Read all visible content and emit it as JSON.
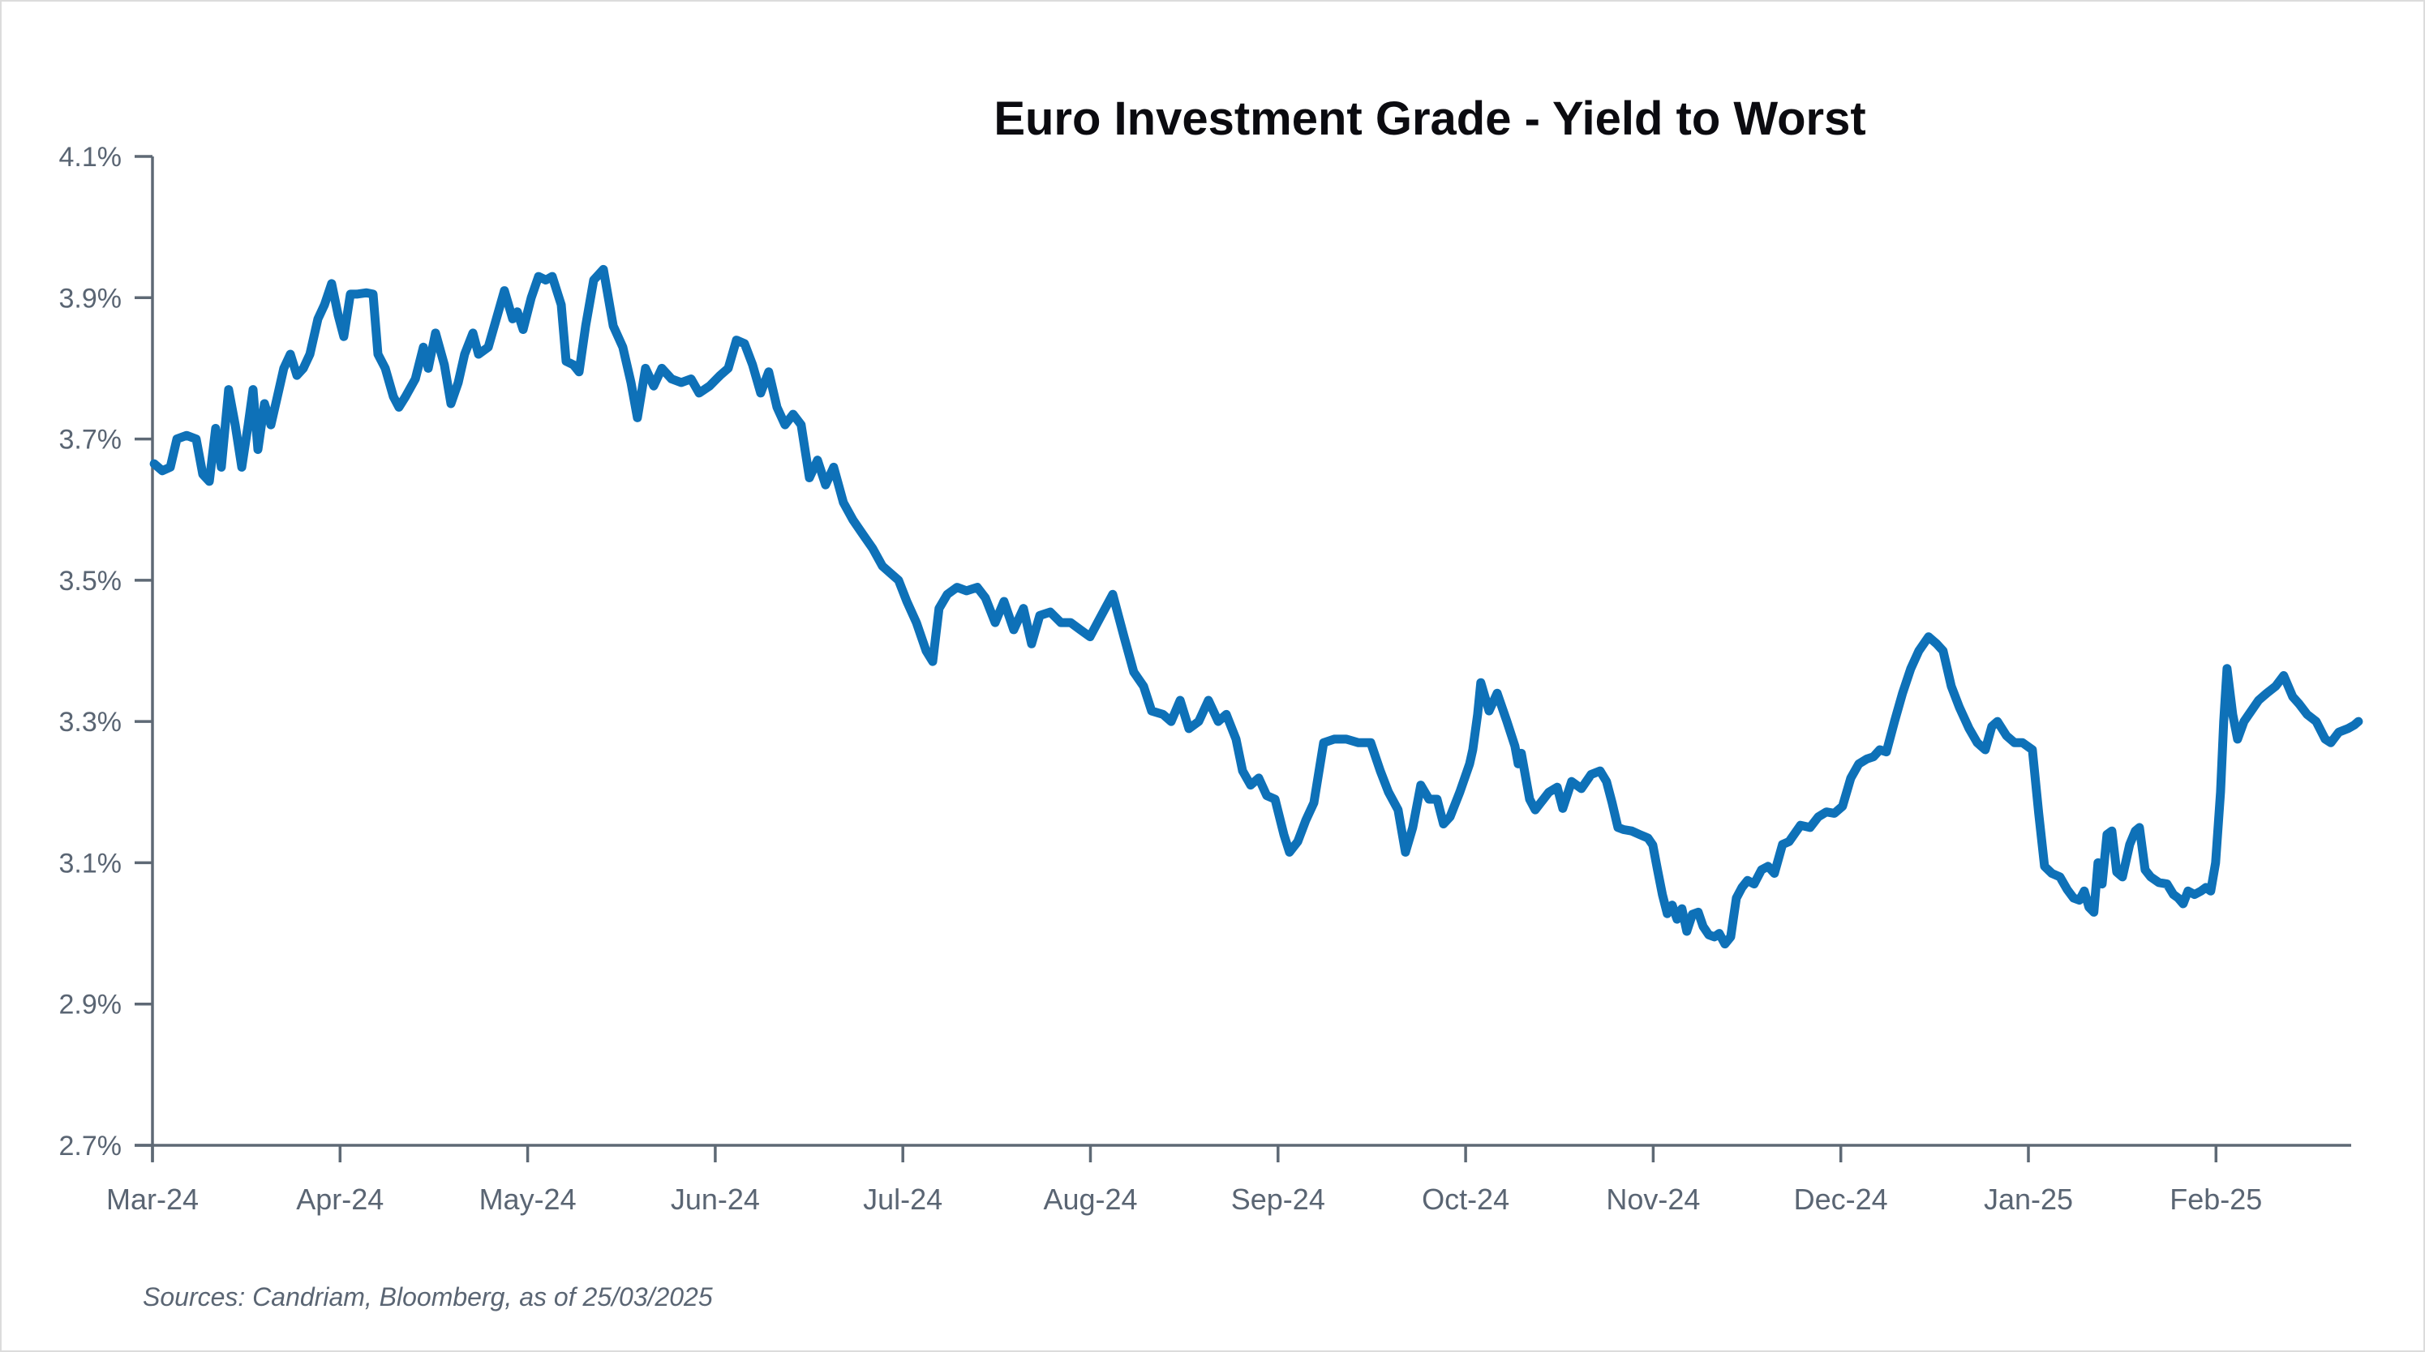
{
  "chart_data": {
    "type": "line",
    "title": "Euro Investment Grade - Yield to Worst",
    "source_note": "Sources: Candriam, Bloomberg, as of 25/03/2025",
    "legend": "none",
    "grid": "off",
    "colors": {
      "line": "#0E71B8",
      "axis": "#5E6975",
      "tick_label": "#5A6573",
      "title": "#0B0B10"
    },
    "y_axis": {
      "min": 2.7,
      "max": 4.1,
      "tick_step": 0.2,
      "unit": "percent",
      "tick_labels": [
        "4.1%",
        "3.9%",
        "3.7%",
        "3.5%",
        "3.3%",
        "3.1%",
        "2.9%",
        "2.7%"
      ]
    },
    "x_axis": {
      "unit": "month",
      "tick_labels": [
        "Mar-24",
        "Apr-24",
        "May-24",
        "Jun-24",
        "Jul-24",
        "Aug-24",
        "Sep-24",
        "Oct-24",
        "Nov-24",
        "Dec-24",
        "Jan-25",
        "Feb-25"
      ]
    },
    "series": [
      {
        "name": "Euro Investment Grade yield to worst (%)",
        "x_unit": "months_since_Mar-24",
        "points": [
          [
            0.009,
            3.665
          ],
          [
            0.052,
            3.655
          ],
          [
            0.095,
            3.66
          ],
          [
            0.13,
            3.7
          ],
          [
            0.182,
            3.705
          ],
          [
            0.233,
            3.7
          ],
          [
            0.268,
            3.65
          ],
          [
            0.303,
            3.64
          ],
          [
            0.337,
            3.715
          ],
          [
            0.367,
            3.66
          ],
          [
            0.406,
            3.77
          ],
          [
            0.441,
            3.72
          ],
          [
            0.476,
            3.66
          ],
          [
            0.51,
            3.72
          ],
          [
            0.536,
            3.77
          ],
          [
            0.562,
            3.685
          ],
          [
            0.597,
            3.75
          ],
          [
            0.631,
            3.72
          ],
          [
            0.666,
            3.76
          ],
          [
            0.7,
            3.8
          ],
          [
            0.735,
            3.82
          ],
          [
            0.77,
            3.79
          ],
          [
            0.804,
            3.8
          ],
          [
            0.839,
            3.82
          ],
          [
            0.882,
            3.87
          ],
          [
            0.917,
            3.89
          ],
          [
            0.955,
            3.92
          ],
          [
            0.99,
            3.875
          ],
          [
            1.02,
            3.845
          ],
          [
            1.055,
            3.905
          ],
          [
            1.089,
            3.905
          ],
          [
            1.141,
            3.907
          ],
          [
            1.176,
            3.905
          ],
          [
            1.202,
            3.82
          ],
          [
            1.241,
            3.8
          ],
          [
            1.284,
            3.76
          ],
          [
            1.314,
            3.745
          ],
          [
            1.349,
            3.76
          ],
          [
            1.401,
            3.785
          ],
          [
            1.444,
            3.83
          ],
          [
            1.47,
            3.8
          ],
          [
            1.509,
            3.85
          ],
          [
            1.556,
            3.805
          ],
          [
            1.591,
            3.75
          ],
          [
            1.63,
            3.78
          ],
          [
            1.664,
            3.82
          ],
          [
            1.708,
            3.85
          ],
          [
            1.738,
            3.82
          ],
          [
            1.79,
            3.83
          ],
          [
            1.833,
            3.87
          ],
          [
            1.876,
            3.91
          ],
          [
            1.92,
            3.87
          ],
          [
            1.945,
            3.88
          ],
          [
            1.976,
            3.855
          ],
          [
            2.019,
            3.9
          ],
          [
            2.058,
            3.93
          ],
          [
            2.097,
            3.925
          ],
          [
            2.131,
            3.93
          ],
          [
            2.179,
            3.89
          ],
          [
            2.205,
            3.81
          ],
          [
            2.244,
            3.805
          ],
          [
            2.274,
            3.795
          ],
          [
            2.309,
            3.86
          ],
          [
            2.352,
            3.925
          ],
          [
            2.404,
            3.94
          ],
          [
            2.456,
            3.86
          ],
          [
            2.507,
            3.83
          ],
          [
            2.551,
            3.78
          ],
          [
            2.585,
            3.73
          ],
          [
            2.628,
            3.8
          ],
          [
            2.672,
            3.775
          ],
          [
            2.715,
            3.8
          ],
          [
            2.767,
            3.785
          ],
          [
            2.819,
            3.78
          ],
          [
            2.871,
            3.785
          ],
          [
            2.914,
            3.765
          ],
          [
            2.97,
            3.775
          ],
          [
            3.026,
            3.79
          ],
          [
            3.069,
            3.8
          ],
          [
            3.113,
            3.84
          ],
          [
            3.156,
            3.835
          ],
          [
            3.199,
            3.805
          ],
          [
            3.242,
            3.765
          ],
          [
            3.285,
            3.795
          ],
          [
            3.329,
            3.745
          ],
          [
            3.372,
            3.72
          ],
          [
            3.415,
            3.735
          ],
          [
            3.458,
            3.72
          ],
          [
            3.502,
            3.645
          ],
          [
            3.545,
            3.67
          ],
          [
            3.588,
            3.635
          ],
          [
            3.631,
            3.66
          ],
          [
            3.683,
            3.61
          ],
          [
            3.735,
            3.585
          ],
          [
            3.787,
            3.565
          ],
          [
            3.839,
            3.545
          ],
          [
            3.891,
            3.52
          ],
          [
            3.934,
            3.51
          ],
          [
            3.977,
            3.5
          ],
          [
            4.021,
            3.47
          ],
          [
            4.072,
            3.44
          ],
          [
            4.124,
            3.4
          ],
          [
            4.159,
            3.385
          ],
          [
            4.193,
            3.46
          ],
          [
            4.237,
            3.48
          ],
          [
            4.289,
            3.49
          ],
          [
            4.34,
            3.485
          ],
          [
            4.397,
            3.49
          ],
          [
            4.44,
            3.475
          ],
          [
            4.492,
            3.44
          ],
          [
            4.539,
            3.47
          ],
          [
            4.591,
            3.43
          ],
          [
            4.643,
            3.46
          ],
          [
            4.686,
            3.41
          ],
          [
            4.73,
            3.45
          ],
          [
            4.786,
            3.455
          ],
          [
            4.842,
            3.44
          ],
          [
            4.894,
            3.44
          ],
          [
            4.946,
            3.43
          ],
          [
            4.998,
            3.42
          ],
          [
            5.058,
            3.45
          ],
          [
            5.119,
            3.48
          ],
          [
            5.179,
            3.42
          ],
          [
            5.231,
            3.37
          ],
          [
            5.283,
            3.35
          ],
          [
            5.326,
            3.315
          ],
          [
            5.387,
            3.31
          ],
          [
            5.43,
            3.3
          ],
          [
            5.478,
            3.33
          ],
          [
            5.525,
            3.29
          ],
          [
            5.577,
            3.3
          ],
          [
            5.629,
            3.33
          ],
          [
            5.681,
            3.3
          ],
          [
            5.724,
            3.31
          ],
          [
            5.776,
            3.275
          ],
          [
            5.811,
            3.23
          ],
          [
            5.854,
            3.21
          ],
          [
            5.897,
            3.22
          ],
          [
            5.94,
            3.195
          ],
          [
            5.984,
            3.19
          ],
          [
            6.031,
            3.14
          ],
          [
            6.061,
            3.115
          ],
          [
            6.105,
            3.13
          ],
          [
            6.148,
            3.16
          ],
          [
            6.191,
            3.185
          ],
          [
            6.243,
            3.27
          ],
          [
            6.299,
            3.275
          ],
          [
            6.364,
            3.275
          ],
          [
            6.429,
            3.27
          ],
          [
            6.494,
            3.27
          ],
          [
            6.545,
            3.23
          ],
          [
            6.589,
            3.2
          ],
          [
            6.64,
            3.175
          ],
          [
            6.679,
            3.115
          ],
          [
            6.718,
            3.15
          ],
          [
            6.761,
            3.21
          ],
          [
            6.805,
            3.19
          ],
          [
            6.848,
            3.19
          ],
          [
            6.882,
            3.155
          ],
          [
            6.917,
            3.165
          ],
          [
            6.969,
            3.2
          ],
          [
            7.021,
            3.24
          ],
          [
            7.038,
            3.26
          ],
          [
            7.064,
            3.31
          ],
          [
            7.081,
            3.355
          ],
          [
            7.125,
            3.315
          ],
          [
            7.168,
            3.34
          ],
          [
            7.22,
            3.3
          ],
          [
            7.263,
            3.265
          ],
          [
            7.28,
            3.24
          ],
          [
            7.297,
            3.255
          ],
          [
            7.341,
            3.19
          ],
          [
            7.371,
            3.175
          ],
          [
            7.444,
            3.2
          ],
          [
            7.488,
            3.207
          ],
          [
            7.518,
            3.177
          ],
          [
            7.565,
            3.215
          ],
          [
            7.617,
            3.205
          ],
          [
            7.669,
            3.225
          ],
          [
            7.717,
            3.23
          ],
          [
            7.751,
            3.215
          ],
          [
            7.781,
            3.185
          ],
          [
            7.812,
            3.15
          ],
          [
            7.842,
            3.147
          ],
          [
            7.885,
            3.145
          ],
          [
            7.928,
            3.14
          ],
          [
            7.972,
            3.135
          ],
          [
            7.998,
            3.125
          ],
          [
            8.023,
            3.09
          ],
          [
            8.049,
            3.055
          ],
          [
            8.075,
            3.028
          ],
          [
            8.101,
            3.04
          ],
          [
            8.127,
            3.02
          ],
          [
            8.153,
            3.035
          ],
          [
            8.179,
            3.003
          ],
          [
            8.209,
            3.027
          ],
          [
            8.24,
            3.03
          ],
          [
            8.266,
            3.01
          ],
          [
            8.296,
            2.998
          ],
          [
            8.326,
            2.995
          ],
          [
            8.352,
            3.0
          ],
          [
            8.382,
            2.985
          ],
          [
            8.413,
            2.995
          ],
          [
            8.443,
            3.05
          ],
          [
            8.473,
            3.065
          ],
          [
            8.503,
            3.075
          ],
          [
            8.538,
            3.07
          ],
          [
            8.577,
            3.09
          ],
          [
            8.612,
            3.095
          ],
          [
            8.646,
            3.085
          ],
          [
            8.689,
            3.126
          ],
          [
            8.724,
            3.13
          ],
          [
            8.785,
            3.153
          ],
          [
            8.836,
            3.15
          ],
          [
            8.88,
            3.165
          ],
          [
            8.923,
            3.172
          ],
          [
            8.966,
            3.17
          ],
          [
            9.009,
            3.18
          ],
          [
            9.053,
            3.22
          ],
          [
            9.096,
            3.24
          ],
          [
            9.139,
            3.247
          ],
          [
            9.174,
            3.25
          ],
          [
            9.208,
            3.26
          ],
          [
            9.243,
            3.257
          ],
          [
            9.286,
            3.3
          ],
          [
            9.329,
            3.34
          ],
          [
            9.373,
            3.375
          ],
          [
            9.416,
            3.4
          ],
          [
            9.468,
            3.42
          ],
          [
            9.511,
            3.41
          ],
          [
            9.545,
            3.4
          ],
          [
            9.589,
            3.35
          ],
          [
            9.632,
            3.32
          ],
          [
            9.684,
            3.29
          ],
          [
            9.727,
            3.27
          ],
          [
            9.77,
            3.26
          ],
          [
            9.805,
            3.293
          ],
          [
            9.835,
            3.3
          ],
          [
            9.883,
            3.28
          ],
          [
            9.926,
            3.27
          ],
          [
            9.969,
            3.27
          ],
          [
            10.021,
            3.26
          ],
          [
            10.055,
            3.17
          ],
          [
            10.086,
            3.095
          ],
          [
            10.125,
            3.085
          ],
          [
            10.168,
            3.08
          ],
          [
            10.207,
            3.062
          ],
          [
            10.241,
            3.05
          ],
          [
            10.272,
            3.047
          ],
          [
            10.298,
            3.06
          ],
          [
            10.323,
            3.037
          ],
          [
            10.349,
            3.03
          ],
          [
            10.371,
            3.1
          ],
          [
            10.393,
            3.07
          ],
          [
            10.419,
            3.14
          ],
          [
            10.445,
            3.145
          ],
          [
            10.471,
            3.087
          ],
          [
            10.501,
            3.08
          ],
          [
            10.54,
            3.126
          ],
          [
            10.57,
            3.145
          ],
          [
            10.592,
            3.15
          ],
          [
            10.622,
            3.09
          ],
          [
            10.652,
            3.08
          ],
          [
            10.695,
            3.072
          ],
          [
            10.739,
            3.07
          ],
          [
            10.773,
            3.055
          ],
          [
            10.799,
            3.05
          ],
          [
            10.825,
            3.042
          ],
          [
            10.851,
            3.06
          ],
          [
            10.886,
            3.055
          ],
          [
            10.92,
            3.06
          ],
          [
            10.946,
            3.065
          ],
          [
            10.972,
            3.06
          ],
          [
            10.998,
            3.1
          ],
          [
            11.024,
            3.2
          ],
          [
            11.041,
            3.3
          ],
          [
            11.059,
            3.375
          ],
          [
            11.089,
            3.31
          ],
          [
            11.115,
            3.275
          ],
          [
            11.149,
            3.3
          ],
          [
            11.175,
            3.31
          ],
          [
            11.227,
            3.33
          ],
          [
            11.27,
            3.34
          ],
          [
            11.318,
            3.35
          ],
          [
            11.361,
            3.365
          ],
          [
            11.409,
            3.335
          ],
          [
            11.443,
            3.325
          ],
          [
            11.486,
            3.31
          ],
          [
            11.534,
            3.3
          ],
          [
            11.582,
            3.275
          ],
          [
            11.612,
            3.27
          ],
          [
            11.655,
            3.285
          ],
          [
            11.703,
            3.29
          ],
          [
            11.737,
            3.295
          ],
          [
            11.759,
            3.3
          ]
        ]
      }
    ]
  }
}
